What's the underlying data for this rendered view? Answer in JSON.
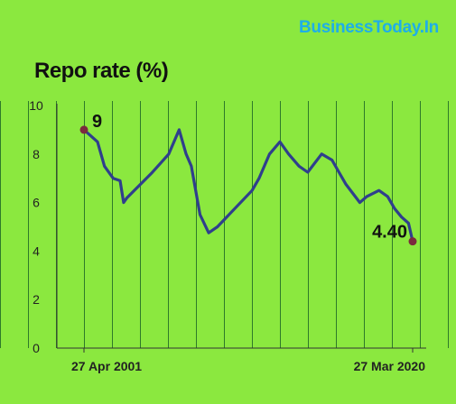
{
  "brand": "BusinessToday.In",
  "chart_data": {
    "type": "line",
    "title": "Repo rate (%)",
    "xlabel": "",
    "ylabel": "",
    "ylim": [
      0,
      10
    ],
    "yticks": [
      0,
      2,
      4,
      6,
      8,
      10
    ],
    "xlim": [
      2001.32,
      2020.24
    ],
    "xtick_labels": [
      {
        "x": 2001.32,
        "label": "27 Apr 2001"
      },
      {
        "x": 2020.24,
        "label": "27 Mar 2020"
      }
    ],
    "grid": "vertical",
    "series": [
      {
        "color": "#2f3f8c",
        "x": [
          2001.32,
          2002.1,
          2002.5,
          2003.0,
          2003.4,
          2003.6,
          2003.8,
          2005.2,
          2006.2,
          2006.8,
          2007.2,
          2007.5,
          2008.0,
          2008.5,
          2009.0,
          2010.0,
          2011.0,
          2011.4,
          2011.7,
          2012.0,
          2012.6,
          2013.1,
          2013.7,
          2014.2,
          2015.0,
          2015.6,
          2016.0,
          2016.4,
          2017.2,
          2017.6,
          2018.3,
          2018.8,
          2019.2,
          2019.6,
          2020.0,
          2020.24
        ],
        "values": [
          9.0,
          8.5,
          7.5,
          7.0,
          6.9,
          6.0,
          6.2,
          7.2,
          8.0,
          9.0,
          8.0,
          7.5,
          5.5,
          4.75,
          5.0,
          5.75,
          6.5,
          7.0,
          7.5,
          8.0,
          8.5,
          8.0,
          7.5,
          7.25,
          8.0,
          7.75,
          7.25,
          6.75,
          6.0,
          6.25,
          6.5,
          6.25,
          5.75,
          5.4,
          5.15,
          4.4
        ]
      }
    ],
    "data_labels": [
      {
        "x": 2001.32,
        "y": 9.0,
        "text": "9"
      },
      {
        "x": 2020.24,
        "y": 4.4,
        "text": "4.40"
      }
    ]
  }
}
